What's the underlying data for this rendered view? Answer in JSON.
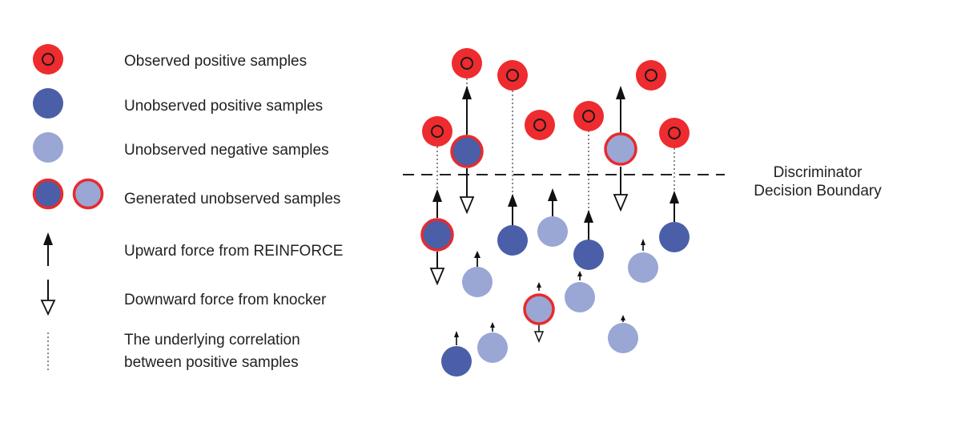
{
  "colors": {
    "observed_positive": "#ee2b2f",
    "observed_ring": "#1a1a1a",
    "unobserved_positive": "#4a5fa8",
    "unobserved_negative": "#9aa6d4",
    "generated_ring": "#e82a2e",
    "arrow": "#111111",
    "correlation_line": "#888888"
  },
  "legend": [
    {
      "icon": "observed-positive-icon",
      "label": "Observed positive samples"
    },
    {
      "icon": "unobserved-positive-icon",
      "label": "Unobserved positive samples"
    },
    {
      "icon": "unobserved-negative-icon",
      "label": "Unobserved negative samples"
    },
    {
      "icon": "generated-unobserved-icon",
      "label": "Generated unobserved samples"
    },
    {
      "icon": "upward-arrow-icon",
      "label": "Upward force from REINFORCE"
    },
    {
      "icon": "downward-arrow-icon",
      "label": "Downward force from knocker"
    },
    {
      "icon": "dotted-line-icon",
      "label": "The underlying correlation",
      "label2": "between positive samples"
    }
  ],
  "boundary": {
    "line1": "Discriminator",
    "line2": "Decision Boundary"
  }
}
